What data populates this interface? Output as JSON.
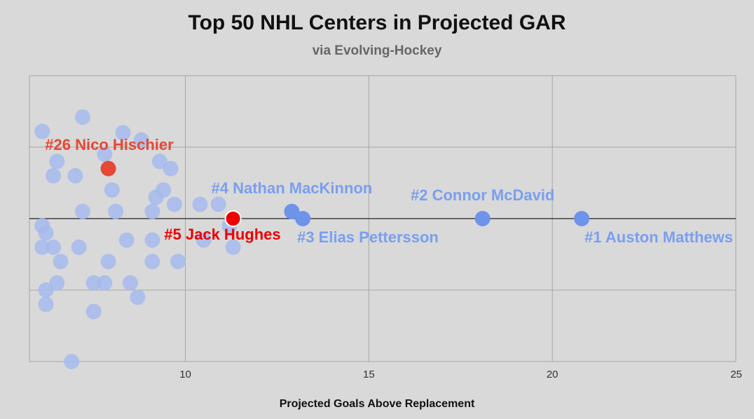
{
  "chart_data": {
    "type": "scatter",
    "title": "Top 50 NHL Centers in Projected GAR",
    "subtitle": "via Evolving-Hockey",
    "xlabel": "Projected Goals Above Replacement",
    "ylabel": "",
    "xlim": [
      5.75,
      25
    ],
    "ylim": [
      -2,
      2
    ],
    "x_ticks": [
      "10",
      "15",
      "20",
      "25"
    ],
    "grid": true,
    "colors": {
      "background": "#d9d9d9",
      "grid": "#a6a6a6",
      "zero_line": "#222222",
      "faded_point": "#a4baec",
      "highlight_blue": "#6d93ea",
      "highlight_blue_label": "#7a9ff0",
      "devils_red": "#e54835",
      "hughes_red": "#ee0000"
    },
    "background_points": [
      [
        6.1,
        1.22
      ],
      [
        7.2,
        1.42
      ],
      [
        7.8,
        0.9
      ],
      [
        8.8,
        1.1
      ],
      [
        6.5,
        0.8
      ],
      [
        6.4,
        0.6
      ],
      [
        7.0,
        0.6
      ],
      [
        9.3,
        0.8
      ],
      [
        9.6,
        0.7
      ],
      [
        8.0,
        0.4
      ],
      [
        9.4,
        0.4
      ],
      [
        9.2,
        0.3
      ],
      [
        9.7,
        0.2
      ],
      [
        10.4,
        0.2
      ],
      [
        7.2,
        0.1
      ],
      [
        8.1,
        0.1
      ],
      [
        9.1,
        0.1
      ],
      [
        11.2,
        -0.1
      ],
      [
        6.1,
        -0.1
      ],
      [
        6.2,
        -0.2
      ],
      [
        10.5,
        -0.3
      ],
      [
        8.4,
        -0.3
      ],
      [
        9.1,
        -0.3
      ],
      [
        6.1,
        -0.4
      ],
      [
        6.4,
        -0.4
      ],
      [
        7.1,
        -0.4
      ],
      [
        11.3,
        -0.4
      ],
      [
        6.6,
        -0.6
      ],
      [
        7.9,
        -0.6
      ],
      [
        9.1,
        -0.6
      ],
      [
        9.8,
        -0.6
      ],
      [
        6.2,
        -1.0
      ],
      [
        6.5,
        -0.9
      ],
      [
        7.5,
        -0.9
      ],
      [
        7.8,
        -0.9
      ],
      [
        8.5,
        -0.9
      ],
      [
        6.2,
        -1.2
      ],
      [
        8.7,
        -1.1
      ],
      [
        7.5,
        -1.3
      ],
      [
        6.9,
        -2.0
      ],
      [
        10.9,
        0.2
      ],
      [
        8.3,
        1.2
      ]
    ],
    "highlights": [
      {
        "label": "#1 Auston Matthews",
        "x": 20.8,
        "y": 0,
        "group": "blue",
        "label_pos": "below-right"
      },
      {
        "label": "#2 Connor McDavid",
        "x": 18.1,
        "y": 0,
        "group": "blue",
        "label_pos": "above"
      },
      {
        "label": "#3 Elias Pettersson",
        "x": 13.2,
        "y": 0,
        "group": "blue",
        "label_pos": "below-right"
      },
      {
        "label": "#4 Nathan MacKinnon",
        "x": 12.9,
        "y": 0.1,
        "group": "blue",
        "label_pos": "above"
      },
      {
        "label": "#5 Jack Hughes",
        "x": 11.3,
        "y": 0,
        "group": "red",
        "label_pos": "below-left"
      },
      {
        "label": "#26 Nico Hischier",
        "x": 7.9,
        "y": 0.7,
        "group": "devils",
        "label_pos": "above"
      }
    ]
  }
}
